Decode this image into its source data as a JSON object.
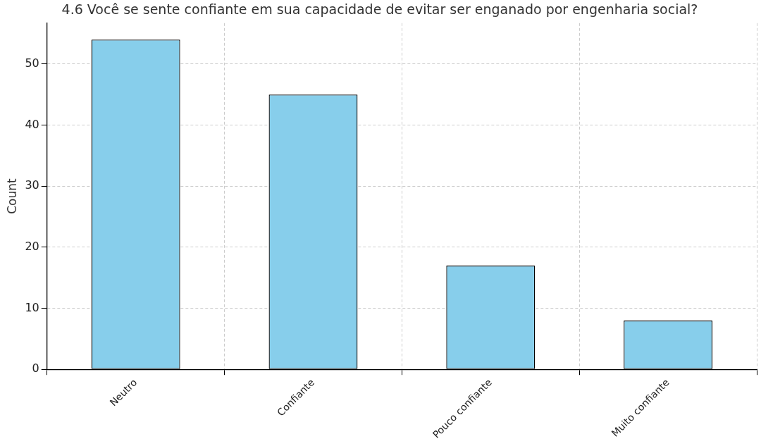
{
  "chart_data": {
    "type": "bar",
    "title": "4.6 Você se sente confiante em sua capacidade de evitar ser enganado por engenharia social?",
    "ylabel": "Count",
    "categories": [
      "Neutro",
      "Confiante",
      "Pouco confiante",
      "Muito confiante"
    ],
    "values": [
      54,
      45,
      17,
      8
    ],
    "color": "#87ceeb",
    "ylim": [
      0,
      56.7
    ],
    "yticks": [
      0,
      10,
      20,
      30,
      40,
      50
    ],
    "grid": true
  }
}
